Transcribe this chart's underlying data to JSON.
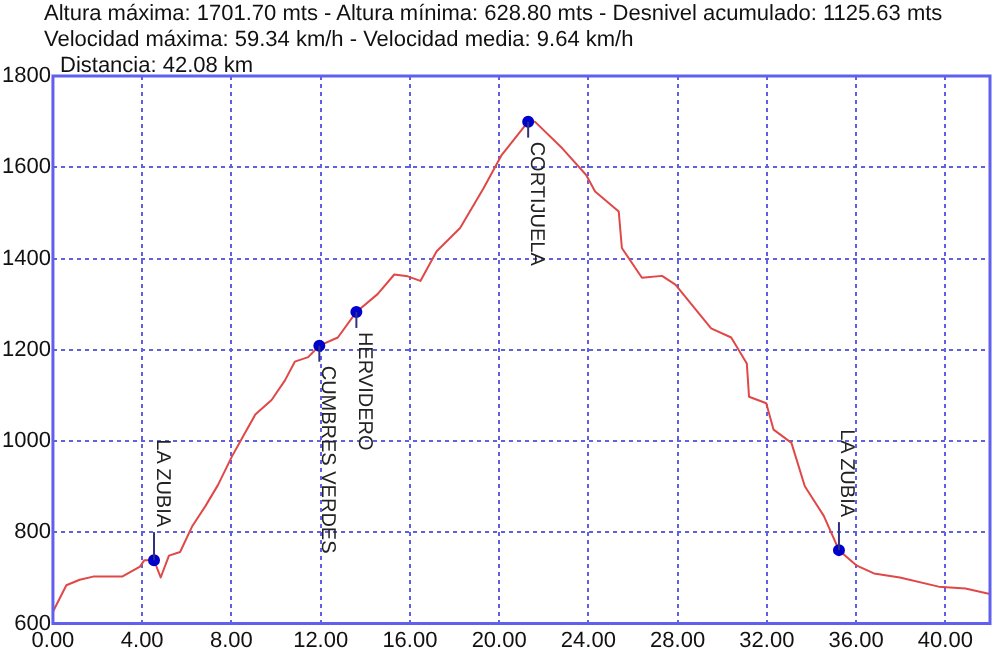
{
  "chart_data": {
    "type": "line",
    "title": "Altura máxima: 1701.70 mts - Altura mínima: 628.80 mts - Desnivel acumulado: 1125.63 mts",
    "subtitle": "Velocidad máxima: 59.34 km/h - Velocidad media: 9.64 km/h",
    "annotations": [
      "Distancia: 42.08 km",
      {
        "text": "LA ZUBIA",
        "x": 4.53,
        "y": 739
      },
      {
        "text": "CUMBRES VERDES",
        "x": 11.94,
        "y": 1209
      },
      {
        "text": "HERVIDERO",
        "x": 13.6,
        "y": 1283
      },
      {
        "text": "CORTIJUELA",
        "x": 21.3,
        "y": 1700
      },
      {
        "text": "LA ZUBIA",
        "x": 35.23,
        "y": 761
      }
    ],
    "xlim": [
      0,
      42
    ],
    "xticks": [
      {
        "value": 0,
        "label": "0.00"
      },
      {
        "value": 4,
        "label": "4.00"
      },
      {
        "value": 8,
        "label": "8.00"
      },
      {
        "value": 12,
        "label": "12.00"
      },
      {
        "value": 16,
        "label": "16.00"
      },
      {
        "value": 20,
        "label": "20.00"
      },
      {
        "value": 24,
        "label": "24.00"
      },
      {
        "value": 28,
        "label": "28.00"
      },
      {
        "value": 32,
        "label": "32.00"
      },
      {
        "value": 36,
        "label": "36.00"
      },
      {
        "value": 40,
        "label": "40.00"
      }
    ],
    "ylim": [
      600,
      1800
    ],
    "yticks": [
      600,
      800,
      1000,
      1200,
      1400,
      1600,
      1800
    ],
    "grid": true,
    "series": [
      {
        "color": "#e04848",
        "x": [
          0,
          0.6,
          1.2,
          1.8,
          3.1,
          3.9,
          4.1,
          4.53,
          4.83,
          5.2,
          5.7,
          6.25,
          6.84,
          7.4,
          8.03,
          8.6,
          9.07,
          9.8,
          10.4,
          10.84,
          11.44,
          11.94,
          12.77,
          13.6,
          14.55,
          15.3,
          15.9,
          16.47,
          17.2,
          18.25,
          19.3,
          20.1,
          21.3,
          21.6,
          22.84,
          23.9,
          24.3,
          25.36,
          25.5,
          26.4,
          27.3,
          27.9,
          29.5,
          30.4,
          31.1,
          31.2,
          31.97,
          32.3,
          33.1,
          33.7,
          34.55,
          35.23,
          36.03,
          36.8,
          37.96,
          39.7,
          40.9,
          42
        ],
        "values": [
          626,
          684,
          696,
          703,
          703,
          725,
          739,
          739,
          701,
          749,
          757,
          814,
          858,
          904,
          967,
          1017,
          1058,
          1090,
          1133,
          1174,
          1184,
          1209,
          1227,
          1283,
          1322,
          1365,
          1361,
          1351,
          1416,
          1467,
          1554,
          1626,
          1700,
          1700,
          1641,
          1583,
          1547,
          1503,
          1423,
          1358,
          1362,
          1343,
          1247,
          1227,
          1170,
          1097,
          1083,
          1025,
          996,
          901,
          836,
          761,
          727,
          710,
          701,
          681,
          677,
          665
        ]
      },
      {
        "type": "scatter",
        "color": "#0000cc",
        "x": [
          4.53,
          11.94,
          13.6,
          21.3,
          35.23
        ],
        "values": [
          739,
          1209,
          1283,
          1700,
          761
        ]
      }
    ]
  }
}
